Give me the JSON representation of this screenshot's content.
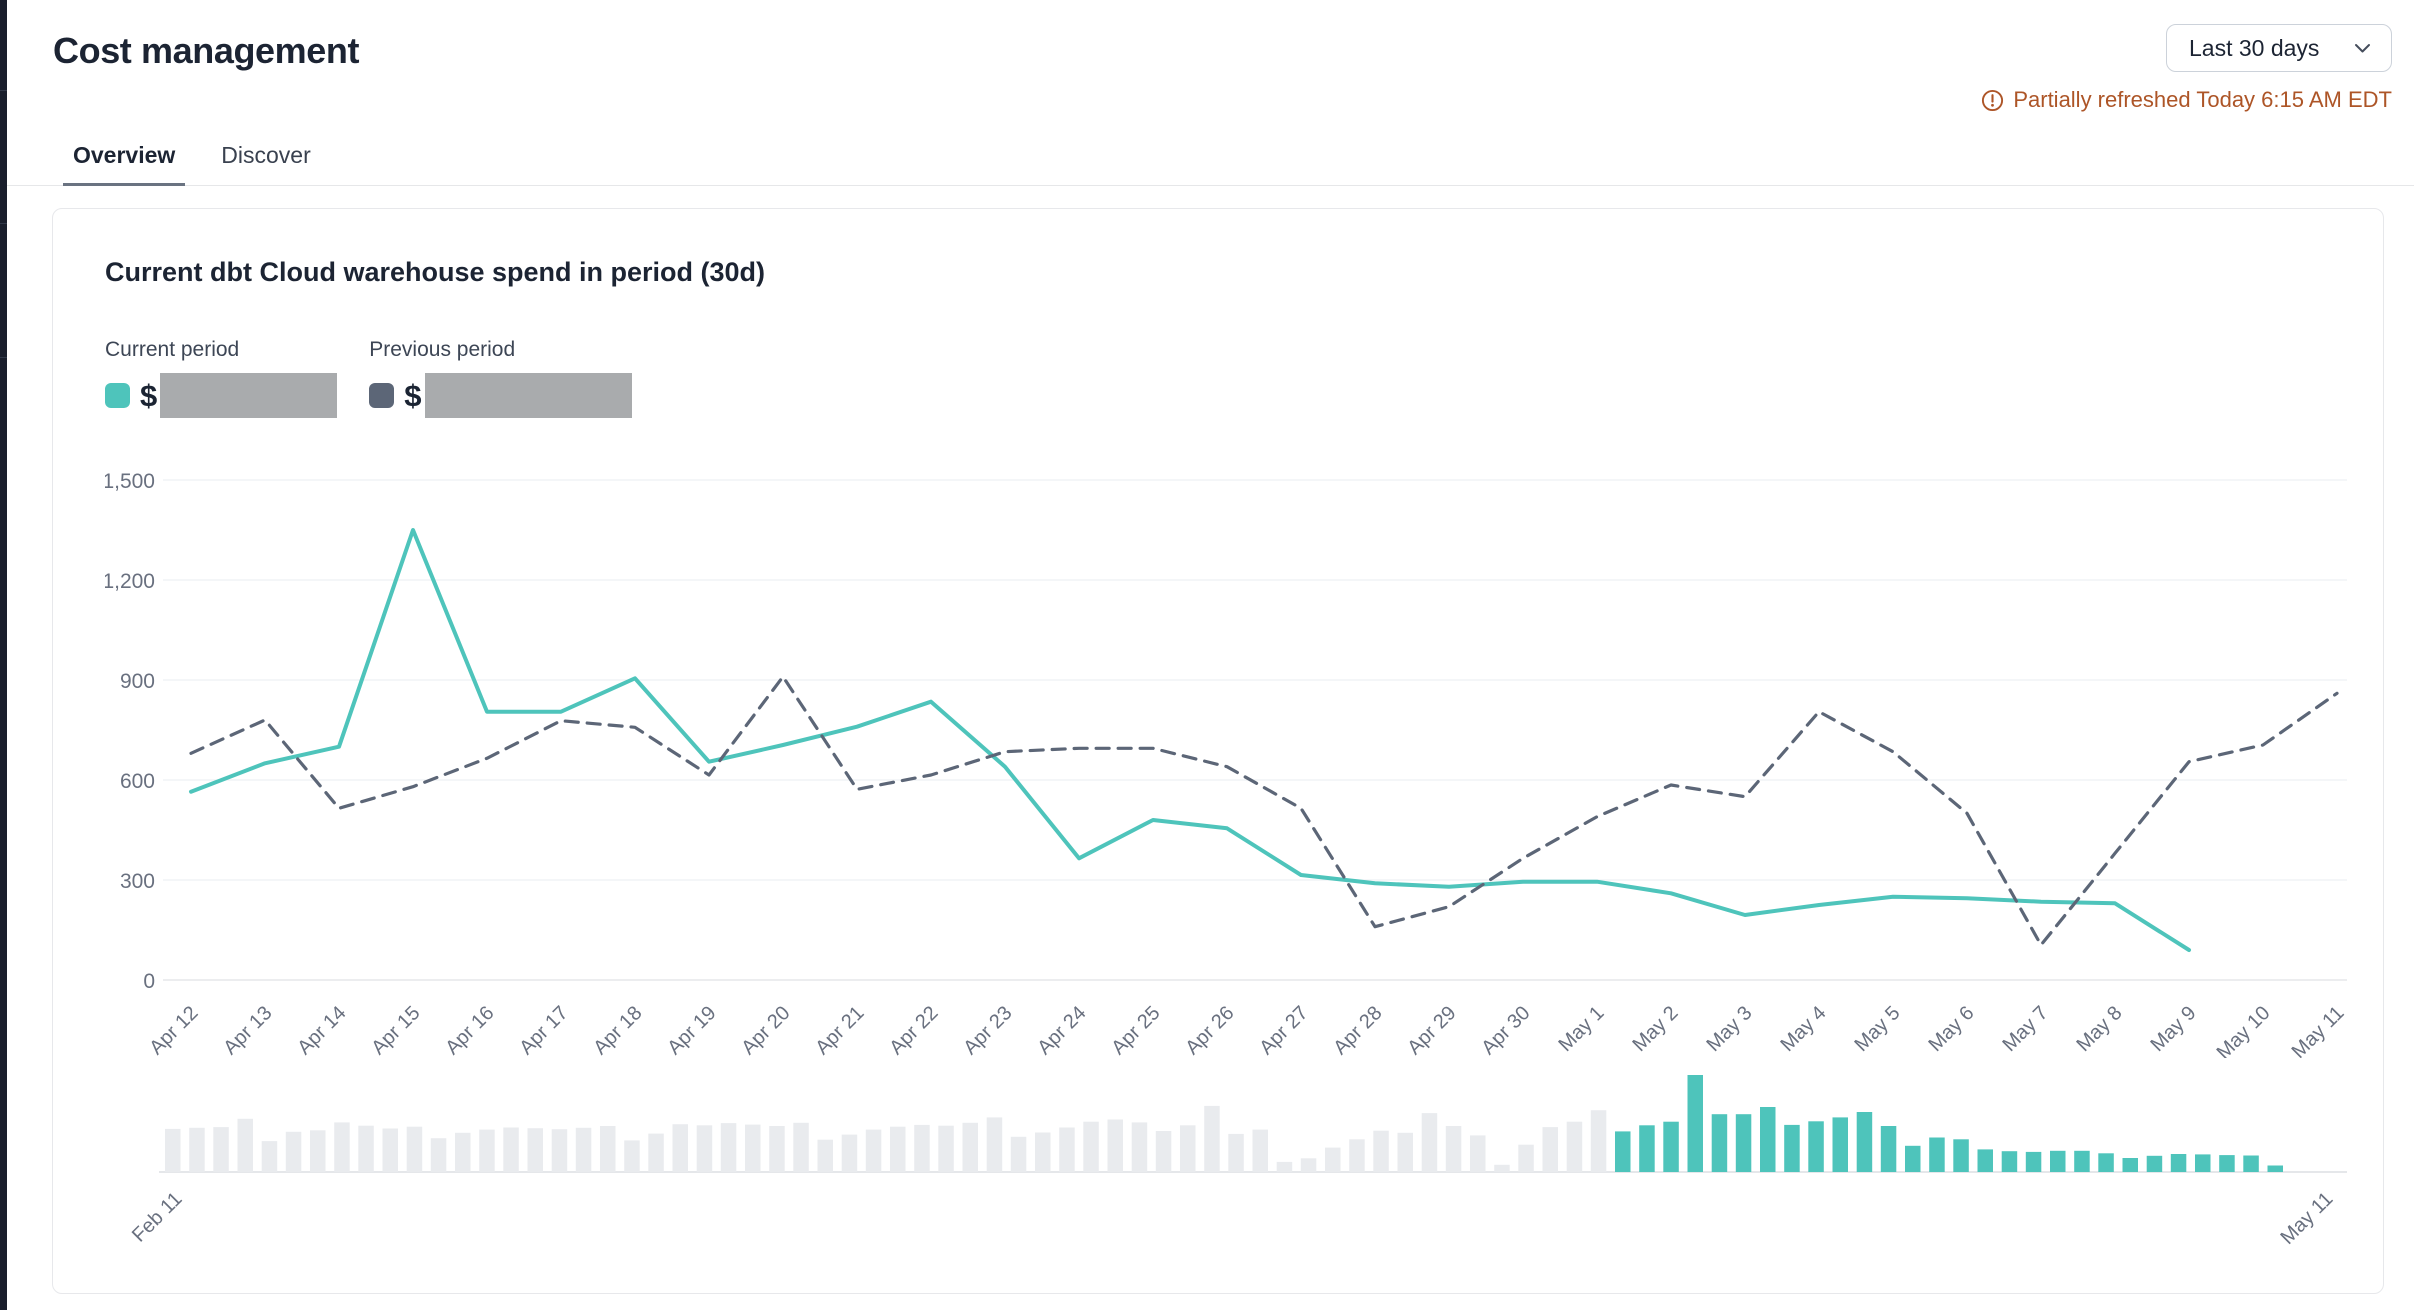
{
  "page": {
    "title": "Cost management",
    "tabs": [
      {
        "label": "Overview",
        "active": true
      },
      {
        "label": "Discover",
        "active": false
      }
    ],
    "range_selector": {
      "value": "Last 30 days"
    },
    "refresh_notice": "Partially refreshed Today 6:15 AM EDT"
  },
  "card": {
    "title": "Current dbt Cloud warehouse spend in period (30d)",
    "legend": [
      {
        "label": "Current period",
        "prefix": "$",
        "swatch_color": "#4ec4bb",
        "value_redacted": true
      },
      {
        "label": "Previous period",
        "prefix": "$",
        "swatch_color": "#5c6677",
        "value_redacted": true
      }
    ]
  },
  "colors": {
    "accent_teal": "#4ec4bb",
    "slate": "#5c6677",
    "warning_orange": "#ad5527",
    "redaction_gray": "#a9abad",
    "grid": "#eef0f3",
    "axis_line": "#e5e7ea",
    "axis_label": "#69707f",
    "bar_gray": "#e9ebee"
  },
  "chart_data": [
    {
      "type": "line",
      "title": "Current dbt Cloud warehouse spend in period (30d)",
      "categories": [
        "Apr 12",
        "Apr 13",
        "Apr 14",
        "Apr 15",
        "Apr 16",
        "Apr 17",
        "Apr 18",
        "Apr 19",
        "Apr 20",
        "Apr 21",
        "Apr 22",
        "Apr 23",
        "Apr 24",
        "Apr 25",
        "Apr 26",
        "Apr 27",
        "Apr 28",
        "Apr 29",
        "Apr 30",
        "May 1",
        "May 2",
        "May 3",
        "May 4",
        "May 5",
        "May 6",
        "May 7",
        "May 8",
        "May 9",
        "May 10",
        "May 11"
      ],
      "series": [
        {
          "name": "Current period",
          "style": "solid",
          "color": "#4ec4bb",
          "values": [
            565,
            650,
            700,
            1350,
            805,
            805,
            905,
            655,
            705,
            760,
            835,
            640,
            365,
            480,
            455,
            315,
            290,
            280,
            295,
            295,
            260,
            195,
            225,
            250,
            245,
            235,
            230,
            90,
            null,
            null
          ]
        },
        {
          "name": "Previous period",
          "style": "dashed",
          "color": "#5c6677",
          "values": [
            680,
            780,
            515,
            580,
            665,
            778,
            758,
            615,
            910,
            572,
            615,
            685,
            695,
            695,
            640,
            515,
            160,
            220,
            365,
            490,
            585,
            550,
            805,
            685,
            500,
            105,
            380,
            655,
            705,
            860
          ]
        }
      ],
      "ylim": [
        0,
        1500
      ],
      "yticks": [
        0,
        300,
        600,
        900,
        1200,
        1500
      ],
      "grid": true,
      "legend_position": "top-left"
    },
    {
      "type": "bar",
      "role": "range-brush",
      "start_label": "Feb 11",
      "end_label": "May 11",
      "selected_start_index": 60,
      "unselected_color": "#e9ebee",
      "selected_color": "#4ec4bb",
      "values": [
        600,
        615,
        625,
        740,
        430,
        560,
        580,
        690,
        645,
        605,
        630,
        470,
        545,
        590,
        620,
        610,
        595,
        615,
        640,
        440,
        535,
        665,
        650,
        680,
        660,
        640,
        685,
        450,
        520,
        590,
        630,
        655,
        645,
        685,
        760,
        490,
        550,
        620,
        700,
        730,
        690,
        570,
        650,
        920,
        530,
        590,
        140,
        190,
        340,
        455,
        575,
        545,
        820,
        640,
        510,
        100,
        380,
        625,
        700,
        860,
        565,
        650,
        700,
        1350,
        805,
        805,
        905,
        655,
        705,
        760,
        835,
        640,
        365,
        480,
        455,
        315,
        290,
        280,
        295,
        295,
        260,
        195,
        225,
        250,
        245,
        235,
        230,
        90,
        0,
        0
      ]
    }
  ]
}
